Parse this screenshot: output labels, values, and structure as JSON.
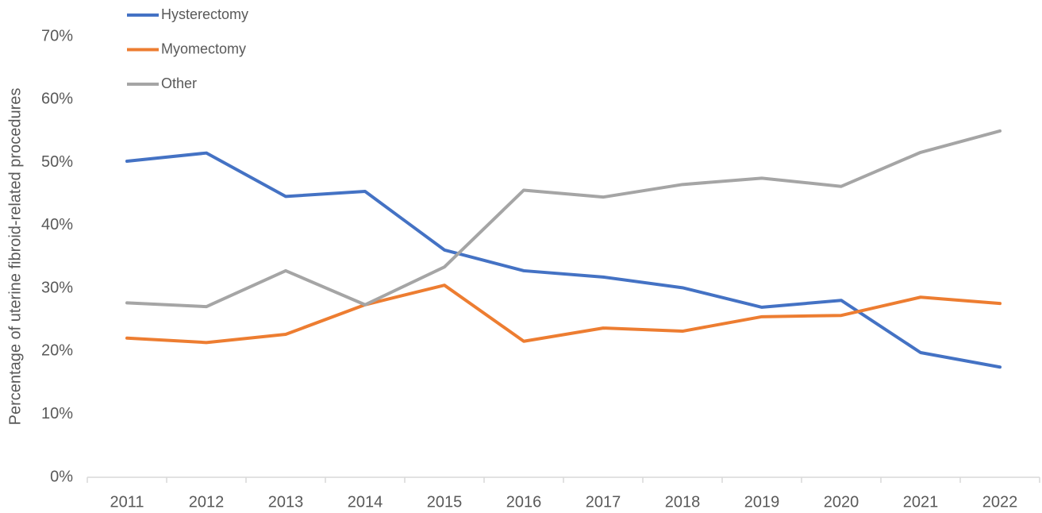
{
  "chart_data": {
    "type": "line",
    "y_label": "Percentage of uterine fibroid-related procedures",
    "categories": [
      "2011",
      "2012",
      "2013",
      "2014",
      "2015",
      "2016",
      "2017",
      "2018",
      "2019",
      "2020",
      "2021",
      "2022"
    ],
    "series": [
      {
        "name": "Hysterectomy",
        "color": "#4472c4",
        "values": [
          50.2,
          51.5,
          44.6,
          45.4,
          36.1,
          32.8,
          31.8,
          30.1,
          27.0,
          28.1,
          19.8,
          17.5
        ]
      },
      {
        "name": "Myomectomy",
        "color": "#ed7d31",
        "values": [
          22.1,
          21.4,
          22.7,
          27.4,
          30.5,
          21.6,
          23.7,
          23.2,
          25.5,
          25.7,
          28.6,
          27.6
        ]
      },
      {
        "name": "Other",
        "color": "#a5a5a5",
        "values": [
          27.7,
          27.1,
          32.8,
          27.4,
          33.4,
          45.6,
          44.5,
          46.5,
          47.5,
          46.2,
          51.6,
          55.0
        ]
      }
    ],
    "ylim": [
      0,
      70
    ],
    "yticks": [
      {
        "value": 0,
        "label": "0%"
      },
      {
        "value": 10,
        "label": "10%"
      },
      {
        "value": 20,
        "label": "20%"
      },
      {
        "value": 30,
        "label": "30%"
      },
      {
        "value": 40,
        "label": "40%"
      },
      {
        "value": 50,
        "label": "50%"
      },
      {
        "value": 60,
        "label": "60%"
      },
      {
        "value": 70,
        "label": "70%"
      }
    ],
    "grid": false,
    "legend": "top-left"
  }
}
